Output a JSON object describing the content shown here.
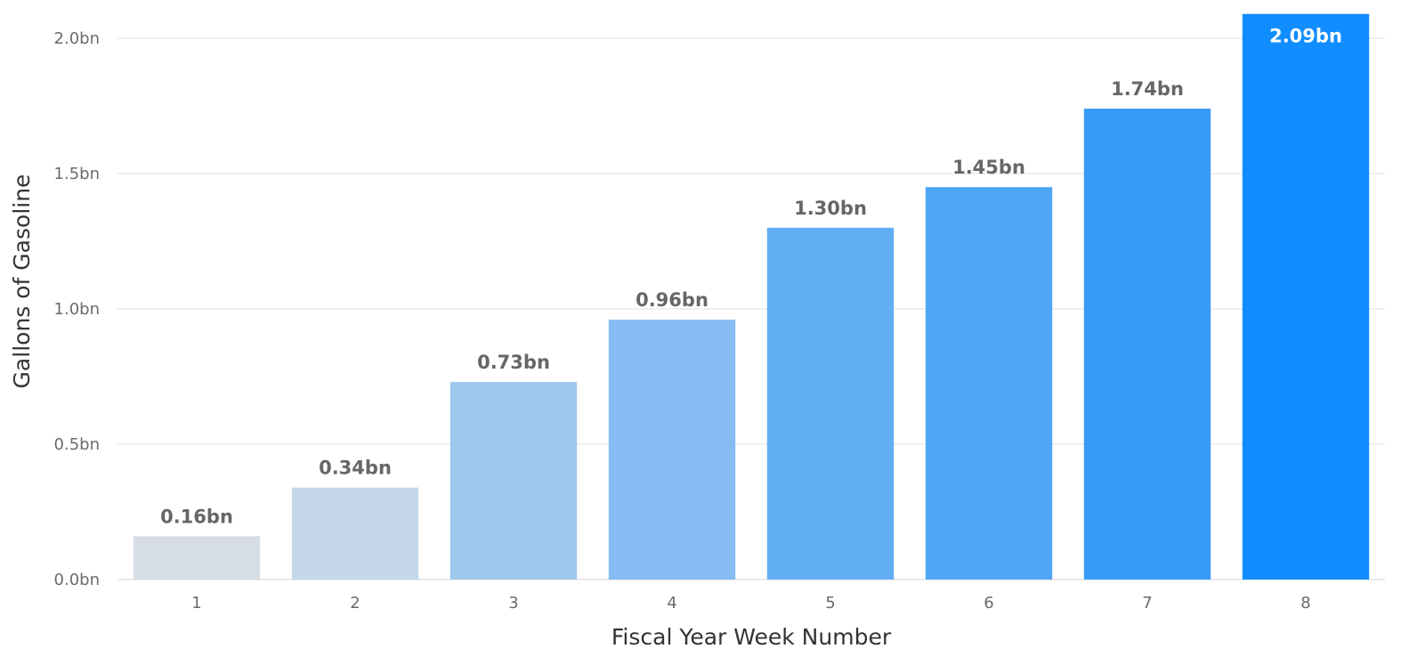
{
  "chart_data": {
    "type": "bar",
    "title": "",
    "xlabel": "Fiscal Year Week Number",
    "ylabel": "Gallons of Gasoline",
    "categories": [
      "1",
      "2",
      "3",
      "4",
      "5",
      "6",
      "7",
      "8"
    ],
    "values": [
      0.16,
      0.34,
      0.73,
      0.96,
      1.3,
      1.45,
      1.74,
      2.09
    ],
    "data_labels": [
      "0.16bn",
      "0.34bn",
      "0.73bn",
      "0.96bn",
      "1.30bn",
      "1.45bn",
      "1.74bn",
      "2.09bn"
    ],
    "ylim": [
      0,
      2.0
    ],
    "yticks": [
      0,
      0.5,
      1.0,
      1.5,
      2.0
    ],
    "ytick_labels": [
      "0.0bn",
      "0.5bn",
      "1.0bn",
      "1.5bn",
      "2.0bn"
    ],
    "grid": true,
    "bar_colors": [
      "#d6dde6",
      "#c5d8ea",
      "#9fc8ef",
      "#86bcf1",
      "#62aef5",
      "#50a6f6",
      "#379bf9",
      "#118dff"
    ],
    "label_color": "#666666",
    "grid_color": "#ececec"
  }
}
